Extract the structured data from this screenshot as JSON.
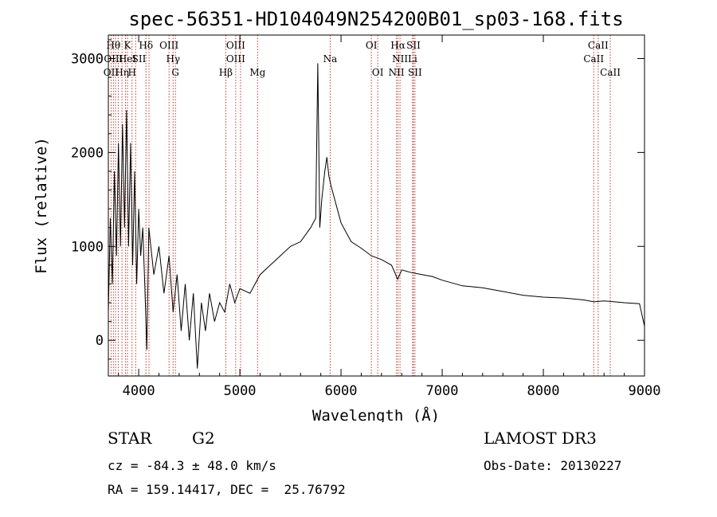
{
  "chart_data": {
    "type": "line",
    "title": "spec-56351-HD104049N254200B01_sp03-168.fits",
    "xlabel": "Wavelength (Å)",
    "ylabel": "Flux (relative)",
    "xlim": [
      3700,
      9000
    ],
    "ylim": [
      -380,
      3250
    ],
    "x_ticks": [
      4000,
      5000,
      6000,
      7000,
      8000,
      9000
    ],
    "y_ticks": [
      0,
      1000,
      2000,
      3000
    ],
    "grid": false,
    "line_color": "#000000",
    "marker_color": "#c0392b",
    "series": [
      {
        "name": "spectrum",
        "points": [
          [
            3700,
            300
          ],
          [
            3720,
            1300
          ],
          [
            3740,
            600
          ],
          [
            3760,
            1800
          ],
          [
            3780,
            900
          ],
          [
            3800,
            2100
          ],
          [
            3820,
            1000
          ],
          [
            3840,
            2300
          ],
          [
            3860,
            1200
          ],
          [
            3880,
            2450
          ],
          [
            3900,
            1000
          ],
          [
            3920,
            2100
          ],
          [
            3940,
            800
          ],
          [
            3960,
            1800
          ],
          [
            3980,
            600
          ],
          [
            4000,
            1400
          ],
          [
            4020,
            900
          ],
          [
            4040,
            1200
          ],
          [
            4060,
            600
          ],
          [
            4080,
            -100
          ],
          [
            4100,
            1200
          ],
          [
            4150,
            700
          ],
          [
            4200,
            1000
          ],
          [
            4250,
            500
          ],
          [
            4300,
            900
          ],
          [
            4340,
            300
          ],
          [
            4380,
            700
          ],
          [
            4420,
            100
          ],
          [
            4460,
            600
          ],
          [
            4500,
            0
          ],
          [
            4540,
            500
          ],
          [
            4580,
            -300
          ],
          [
            4620,
            400
          ],
          [
            4660,
            100
          ],
          [
            4700,
            500
          ],
          [
            4750,
            200
          ],
          [
            4800,
            400
          ],
          [
            4850,
            300
          ],
          [
            4900,
            600
          ],
          [
            4950,
            400
          ],
          [
            5000,
            550
          ],
          [
            5100,
            500
          ],
          [
            5200,
            700
          ],
          [
            5300,
            800
          ],
          [
            5400,
            900
          ],
          [
            5500,
            1000
          ],
          [
            5600,
            1050
          ],
          [
            5700,
            1200
          ],
          [
            5750,
            1300
          ],
          [
            5770,
            2950
          ],
          [
            5790,
            1200
          ],
          [
            5810,
            1500
          ],
          [
            5840,
            1800
          ],
          [
            5860,
            1950
          ],
          [
            5880,
            1750
          ],
          [
            5900,
            1650
          ],
          [
            5950,
            1450
          ],
          [
            6000,
            1250
          ],
          [
            6100,
            1050
          ],
          [
            6200,
            980
          ],
          [
            6300,
            900
          ],
          [
            6400,
            860
          ],
          [
            6500,
            800
          ],
          [
            6560,
            650
          ],
          [
            6600,
            750
          ],
          [
            6700,
            720
          ],
          [
            6800,
            700
          ],
          [
            6900,
            680
          ],
          [
            7000,
            640
          ],
          [
            7200,
            580
          ],
          [
            7400,
            560
          ],
          [
            7600,
            520
          ],
          [
            7800,
            480
          ],
          [
            8000,
            460
          ],
          [
            8200,
            450
          ],
          [
            8400,
            430
          ],
          [
            8500,
            410
          ],
          [
            8600,
            420
          ],
          [
            8800,
            400
          ],
          [
            8950,
            390
          ],
          [
            9000,
            150
          ]
        ]
      }
    ],
    "line_markers": [
      {
        "x": 3727,
        "labels": [
          "OII"
        ]
      },
      {
        "x": 3750,
        "labels": [
          "Hθ"
        ]
      },
      {
        "x": 3771,
        "labels": [
          "Hη"
        ]
      },
      {
        "x": 3798,
        "labels": [
          "OIII"
        ]
      },
      {
        "x": 3835,
        "labels": [
          "Hη"
        ]
      },
      {
        "x": 3870,
        "labels": [
          "HeI"
        ]
      },
      {
        "x": 3889,
        "labels": [
          "K"
        ]
      },
      {
        "x": 3934,
        "labels": [
          "H"
        ]
      },
      {
        "x": 3970,
        "labels": [
          "SII"
        ]
      },
      {
        "x": 4072,
        "labels": [
          "Hδ"
        ]
      },
      {
        "x": 4102,
        "labels": [
          "SII"
        ]
      },
      {
        "x": 4300,
        "labels": [
          "OIII"
        ]
      },
      {
        "x": 4340,
        "labels": [
          "Hγ"
        ]
      },
      {
        "x": 4363,
        "labels": [
          "G"
        ]
      },
      {
        "x": 4861,
        "labels": [
          "Hβ"
        ]
      },
      {
        "x": 4959,
        "labels": [
          "OIII"
        ]
      },
      {
        "x": 5007,
        "labels": [
          "OIII"
        ]
      },
      {
        "x": 5175,
        "labels": [
          "Mg"
        ]
      },
      {
        "x": 5893,
        "labels": [
          "Na"
        ]
      },
      {
        "x": 6300,
        "labels": [
          "OI"
        ]
      },
      {
        "x": 6363,
        "labels": [
          "OI"
        ]
      },
      {
        "x": 6548,
        "labels": [
          "NII"
        ]
      },
      {
        "x": 6563,
        "labels": [
          "Hα"
        ]
      },
      {
        "x": 6583,
        "labels": [
          "NII"
        ]
      },
      {
        "x": 6708,
        "labels": [
          "Li"
        ]
      },
      {
        "x": 6716,
        "labels": [
          "SII"
        ]
      },
      {
        "x": 6731,
        "labels": [
          "SII"
        ]
      },
      {
        "x": 8498,
        "labels": [
          "CaII"
        ]
      },
      {
        "x": 8542,
        "labels": [
          "CaII"
        ]
      },
      {
        "x": 8662,
        "labels": [
          "CaII"
        ]
      }
    ],
    "line_label_rows": [
      [
        {
          "text": "Hθ",
          "x": 3750
        },
        {
          "text": "K",
          "x": 3889
        },
        {
          "text": "Hδ",
          "x": 4072
        },
        {
          "text": "OIII",
          "x": 4300
        },
        {
          "text": "OIII",
          "x": 4959
        },
        {
          "text": "OI",
          "x": 6300
        },
        {
          "text": "Hα",
          "x": 6563
        },
        {
          "text": "SII",
          "x": 6716
        },
        {
          "text": "CaII",
          "x": 8542
        }
      ],
      [
        {
          "text": "OIII",
          "x": 3750
        },
        {
          "text": "HeI",
          "x": 3889
        },
        {
          "text": "SII",
          "x": 4003
        },
        {
          "text": "Hγ",
          "x": 4340
        },
        {
          "text": "OIII",
          "x": 4959
        },
        {
          "text": "Na",
          "x": 5893
        },
        {
          "text": "NII",
          "x": 6583
        },
        {
          "text": "Li",
          "x": 6708
        },
        {
          "text": "CaII",
          "x": 8498
        }
      ],
      [
        {
          "text": "OII",
          "x": 3727
        },
        {
          "text": "Hη",
          "x": 3835
        },
        {
          "text": "H",
          "x": 3934
        },
        {
          "text": "G",
          "x": 4363
        },
        {
          "text": "Hβ",
          "x": 4861
        },
        {
          "text": "Mg",
          "x": 5175
        },
        {
          "text": "OI",
          "x": 6363
        },
        {
          "text": "NII",
          "x": 6548
        },
        {
          "text": "SII",
          "x": 6731
        },
        {
          "text": "CaII",
          "x": 8662
        }
      ]
    ]
  },
  "info": {
    "class": "STAR",
    "subclass": "G2",
    "survey": "LAMOST DR3",
    "cz": "cz = -84.3 ± 48.0 km/s",
    "obs_date": "Obs-Date: 20130227",
    "radec": "RA = 159.14417, DEC =  25.76792"
  }
}
